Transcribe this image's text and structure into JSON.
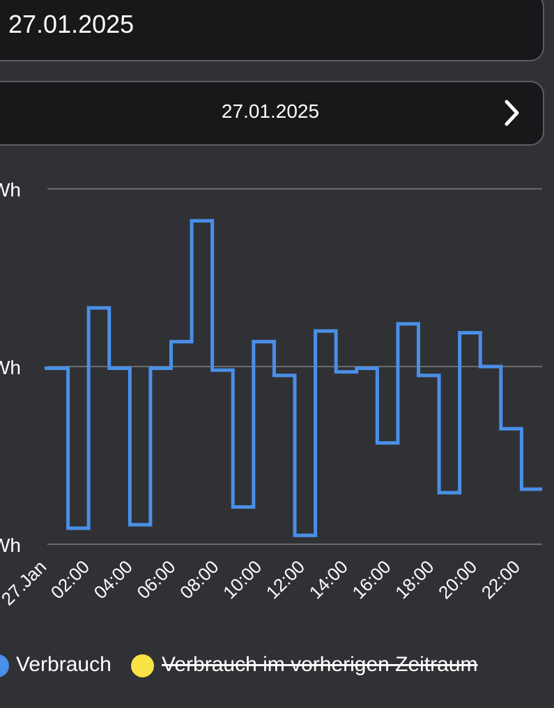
{
  "date_input": {
    "value": "27.01.2025"
  },
  "period_nav": {
    "label": "27.01.2025",
    "next_icon": "chevron-right-icon"
  },
  "chart_data": {
    "type": "line",
    "step": true,
    "y_tick_labels": [
      "Wh",
      "Wh",
      "Wh"
    ],
    "x_tick_labels": [
      "27.Jan",
      "02:00",
      "04:00",
      "06:00",
      "08:00",
      "10:00",
      "12:00",
      "14:00",
      "16:00",
      "18:00",
      "20:00",
      "22:00"
    ],
    "ylim": [
      0,
      2
    ],
    "grid": true,
    "legend_position": "bottom",
    "series": [
      {
        "name": "Verbrauch",
        "color": "#4a8fe8",
        "hidden": false,
        "values": [
          0.99,
          0.09,
          1.33,
          0.99,
          0.11,
          0.99,
          1.14,
          1.82,
          0.98,
          0.21,
          1.14,
          0.95,
          0.05,
          1.2,
          0.97,
          0.99,
          0.57,
          1.24,
          0.95,
          0.29,
          1.19,
          1.0,
          0.65,
          0.31
        ]
      },
      {
        "name": "Verbrauch im vorherigen Zeitraum",
        "color": "#f8e345",
        "hidden": true,
        "values": []
      }
    ]
  }
}
